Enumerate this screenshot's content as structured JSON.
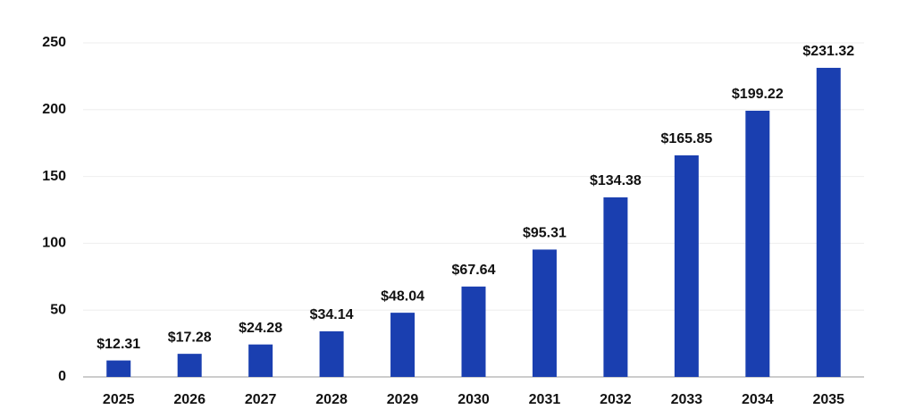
{
  "chart_data": {
    "type": "bar",
    "categories": [
      "2025",
      "2026",
      "2027",
      "2028",
      "2029",
      "2030",
      "2031",
      "2032",
      "2033",
      "2034",
      "2035"
    ],
    "values": [
      12.31,
      17.28,
      24.28,
      34.14,
      48.04,
      67.64,
      95.31,
      134.38,
      165.85,
      199.22,
      231.32
    ],
    "value_labels": [
      "$12.31",
      "$17.28",
      "$24.28",
      "$34.14",
      "$48.04",
      "$67.64",
      "$95.31",
      "$134.38",
      "$165.85",
      "$199.22",
      "$231.32"
    ],
    "color": "#1a3fb0",
    "ylim": [
      0,
      250
    ],
    "yticks": [
      0,
      50,
      100,
      150,
      200,
      250
    ],
    "grid": true
  }
}
